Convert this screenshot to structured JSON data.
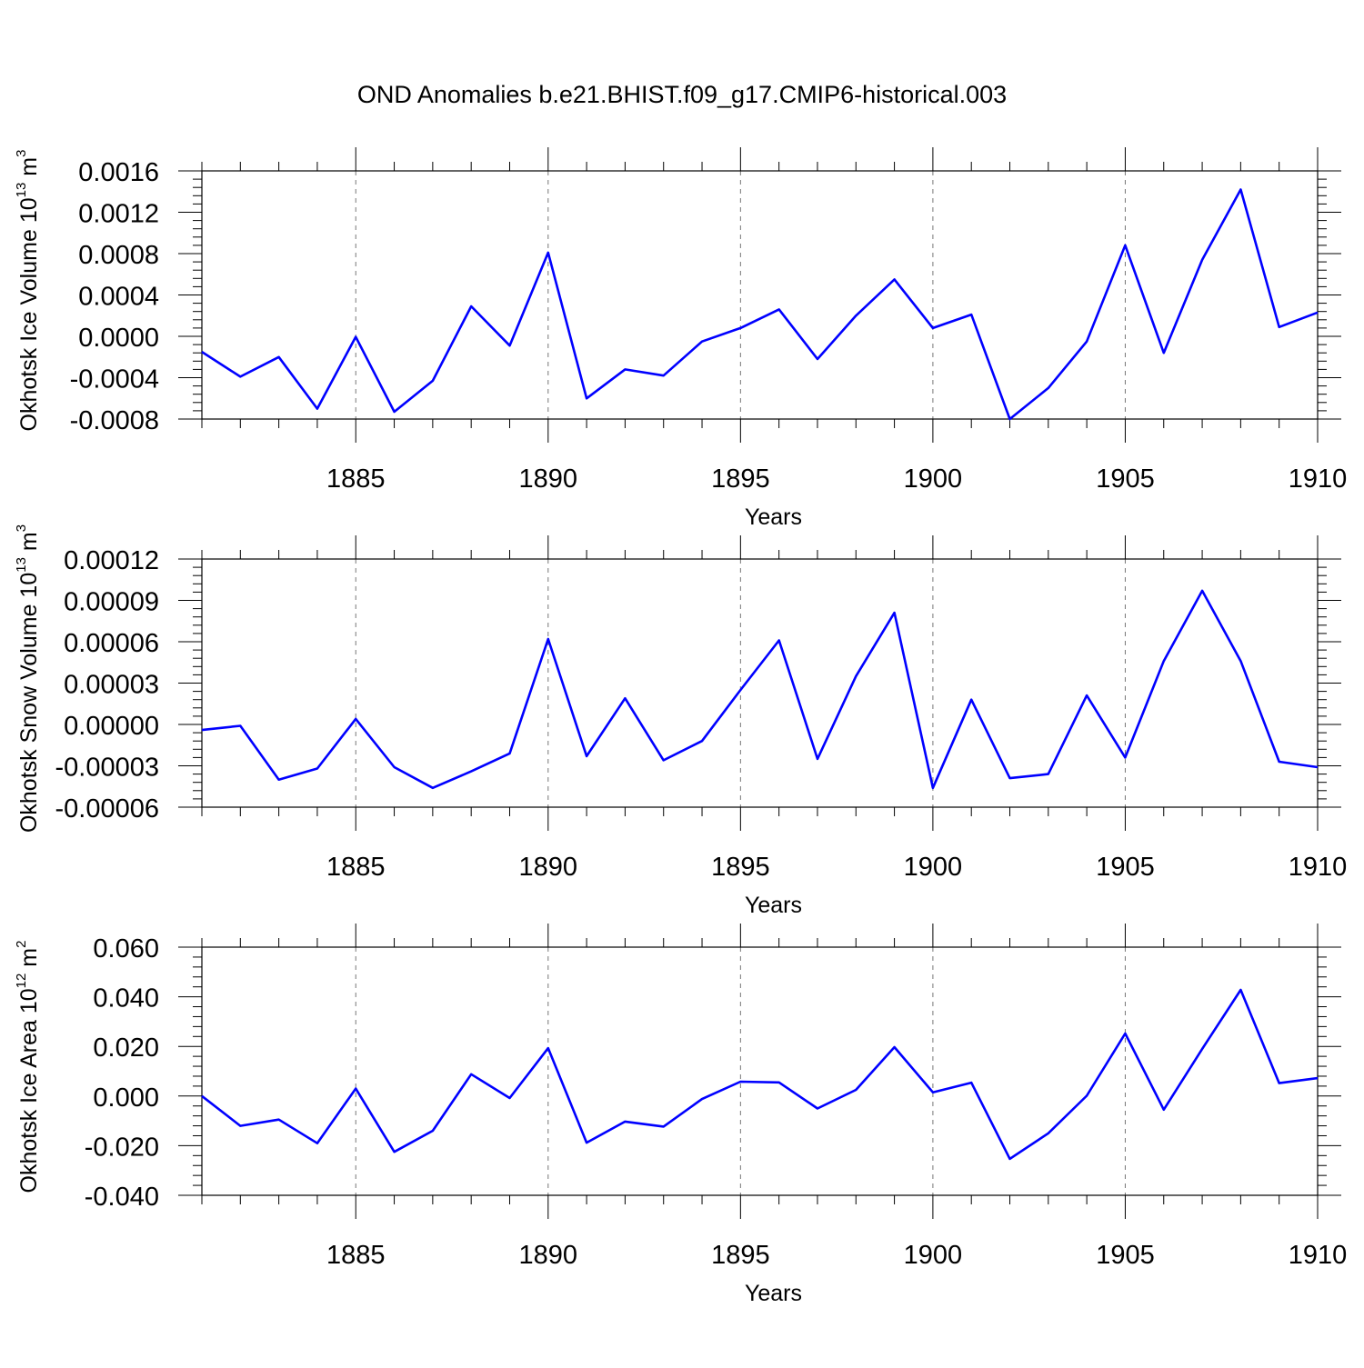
{
  "title": "OND Anomalies b.e21.BHIST.f09_g17.CMIP6-historical.003",
  "colors": {
    "line": "#0000ff",
    "grid": "#777777",
    "axes": "#000000"
  },
  "chart_data": [
    {
      "type": "line",
      "ylabel": "Okhotsk Ice Volume 10",
      "ylabel_exp": "13",
      "ylabel_unit": " m",
      "ylabel_unit_exp": "3",
      "xlabel": "Years",
      "xlim": [
        1881,
        1910
      ],
      "ylim": [
        -0.0008,
        0.0016
      ],
      "yticks": [
        -0.0008,
        -0.0004,
        0.0,
        0.0004,
        0.0008,
        0.0012,
        0.0016
      ],
      "ytick_labels": [
        "-0.0008",
        "-0.0004",
        "0.0000",
        "0.0004",
        "0.0008",
        "0.0012",
        "0.0016"
      ],
      "xticks": [
        1885,
        1890,
        1895,
        1900,
        1905,
        1910
      ],
      "xtick_labels": [
        "1885",
        "1890",
        "1895",
        "1900",
        "1905",
        "1910"
      ],
      "grid_x": true,
      "x": [
        1881,
        1882,
        1883,
        1884,
        1885,
        1886,
        1887,
        1888,
        1889,
        1890,
        1891,
        1892,
        1893,
        1894,
        1895,
        1896,
        1897,
        1898,
        1899,
        1900,
        1901,
        1902,
        1903,
        1904,
        1905,
        1906,
        1907,
        1908,
        1909,
        1910
      ],
      "series": [
        {
          "name": "Okhotsk Ice Volume",
          "values": [
            -0.00015,
            -0.00039,
            -0.0002,
            -0.0007,
            -5e-06,
            -0.00073,
            -0.00043,
            0.00029,
            -9e-05,
            0.00081,
            -0.0006,
            -0.00032,
            -0.00038,
            -5e-05,
            8e-05,
            0.00026,
            -0.00022,
            0.0002,
            0.00055,
            8e-05,
            0.00021,
            -0.0008,
            -0.0005,
            -5e-05,
            0.00088,
            -0.00016,
            0.00074,
            0.00142,
            9e-05,
            0.00023
          ]
        }
      ]
    },
    {
      "type": "line",
      "ylabel": "Okhotsk Snow Volume 10",
      "ylabel_exp": "13",
      "ylabel_unit": " m",
      "ylabel_unit_exp": "3",
      "xlabel": "Years",
      "xlim": [
        1881,
        1910
      ],
      "ylim": [
        -6e-05,
        0.00012
      ],
      "yticks": [
        -6e-05,
        -3e-05,
        0.0,
        3e-05,
        6e-05,
        9e-05,
        0.00012
      ],
      "ytick_labels": [
        "-0.00006",
        "-0.00003",
        "0.00000",
        "0.00003",
        "0.00006",
        "0.00009",
        "0.00012"
      ],
      "xticks": [
        1885,
        1890,
        1895,
        1900,
        1905,
        1910
      ],
      "xtick_labels": [
        "1885",
        "1890",
        "1895",
        "1900",
        "1905",
        "1910"
      ],
      "grid_x": true,
      "x": [
        1881,
        1882,
        1883,
        1884,
        1885,
        1886,
        1887,
        1888,
        1889,
        1890,
        1891,
        1892,
        1893,
        1894,
        1895,
        1896,
        1897,
        1898,
        1899,
        1900,
        1901,
        1902,
        1903,
        1904,
        1905,
        1906,
        1907,
        1908,
        1909,
        1910
      ],
      "series": [
        {
          "name": "Okhotsk Snow Volume",
          "values": [
            -4e-06,
            -1e-06,
            -4e-05,
            -3.2e-05,
            4e-06,
            -3.1e-05,
            -4.6e-05,
            -3.4e-05,
            -2.1e-05,
            6.2e-05,
            -2.3e-05,
            1.9e-05,
            -2.6e-05,
            -1.2e-05,
            2.5e-05,
            6.1e-05,
            -2.5e-05,
            3.5e-05,
            8.1e-05,
            -4.6e-05,
            1.8e-05,
            -3.9e-05,
            -3.6e-05,
            2.1e-05,
            -2.4e-05,
            4.6e-05,
            9.7e-05,
            4.6e-05,
            -2.7e-05,
            -3.1e-05
          ]
        }
      ]
    },
    {
      "type": "line",
      "ylabel": "Okhotsk Ice Area 10",
      "ylabel_exp": "12",
      "ylabel_unit": " m",
      "ylabel_unit_exp": "2",
      "xlabel": "Years",
      "xlim": [
        1881,
        1910
      ],
      "ylim": [
        -0.04,
        0.06
      ],
      "yticks": [
        -0.04,
        -0.02,
        0.0,
        0.02,
        0.04,
        0.06
      ],
      "ytick_labels": [
        "-0.040",
        "-0.020",
        "0.000",
        "0.020",
        "0.040",
        "0.060"
      ],
      "xticks": [
        1885,
        1890,
        1895,
        1900,
        1905,
        1910
      ],
      "xtick_labels": [
        "1885",
        "1890",
        "1895",
        "1900",
        "1905",
        "1910"
      ],
      "grid_x": true,
      "x": [
        1881,
        1882,
        1883,
        1884,
        1885,
        1886,
        1887,
        1888,
        1889,
        1890,
        1891,
        1892,
        1893,
        1894,
        1895,
        1896,
        1897,
        1898,
        1899,
        1900,
        1901,
        1902,
        1903,
        1904,
        1905,
        1906,
        1907,
        1908,
        1909,
        1910
      ],
      "series": [
        {
          "name": "Okhotsk Ice Area",
          "values": [
            0.0,
            -0.012,
            -0.0095,
            -0.019,
            0.003,
            -0.0225,
            -0.014,
            0.0088,
            -0.0008,
            0.0193,
            -0.0188,
            -0.0103,
            -0.0123,
            -0.0012,
            0.0058,
            0.0055,
            -0.005,
            0.0025,
            0.0197,
            0.0015,
            0.0054,
            -0.0253,
            -0.015,
            0.0001,
            0.0252,
            -0.0055,
            0.019,
            0.0428,
            0.0052,
            0.0072
          ]
        }
      ]
    }
  ]
}
